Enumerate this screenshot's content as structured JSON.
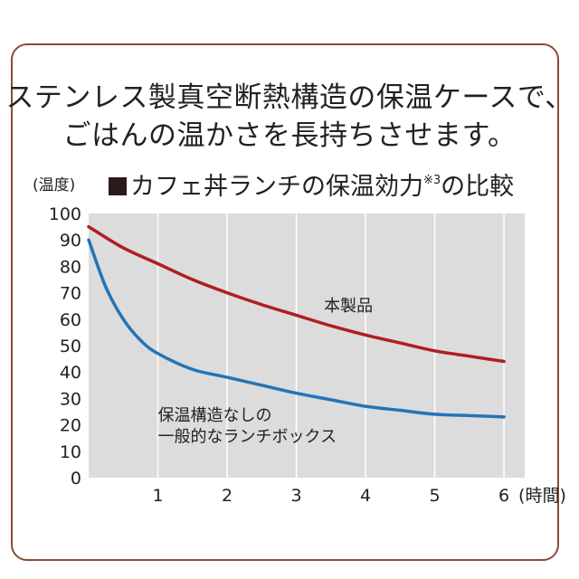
{
  "headline": {
    "line1": "ステンレス製真空断熱構造の保温ケースで、",
    "line2": "ごはんの温かさを長持ちさせます。"
  },
  "colors": {
    "border": "#8a4a36",
    "plot_bg": "#dcdcdc",
    "product_line": "#b01d22",
    "normal_line": "#2374b8"
  },
  "chart_data": {
    "type": "line",
    "title": "カフェ丼ランチの保温効力",
    "title_note": "※3",
    "title_suffix": "の比較",
    "ylabel": "(温度)",
    "xlabel": "(時間)",
    "xlim": [
      0,
      6.3
    ],
    "ylim": [
      0,
      100
    ],
    "x_ticks": [
      1,
      2,
      3,
      4,
      5,
      6
    ],
    "y_ticks": [
      0,
      10,
      20,
      30,
      40,
      50,
      60,
      70,
      80,
      90,
      100
    ],
    "grid": "vertical",
    "series": [
      {
        "name": "本製品",
        "color": "#b01d22",
        "x": [
          0,
          0.5,
          1,
          1.5,
          2,
          2.5,
          3,
          3.5,
          4,
          4.5,
          5,
          5.5,
          6
        ],
        "y": [
          95,
          87,
          81,
          75,
          70,
          65.5,
          61.5,
          57.5,
          54,
          51,
          48,
          46,
          44
        ]
      },
      {
        "name": "保温構造なしの\n一般的なランチボックス",
        "name_line1": "保温構造なしの",
        "name_line2": "一般的なランチボックス",
        "color": "#2374b8",
        "x": [
          0,
          0.25,
          0.5,
          0.75,
          1,
          1.5,
          2,
          2.5,
          3,
          3.5,
          4,
          4.5,
          5,
          5.5,
          6
        ],
        "y": [
          90,
          72,
          60,
          52,
          47,
          41,
          38,
          35,
          32,
          29.5,
          27,
          25.5,
          24,
          23.5,
          23
        ]
      }
    ]
  }
}
